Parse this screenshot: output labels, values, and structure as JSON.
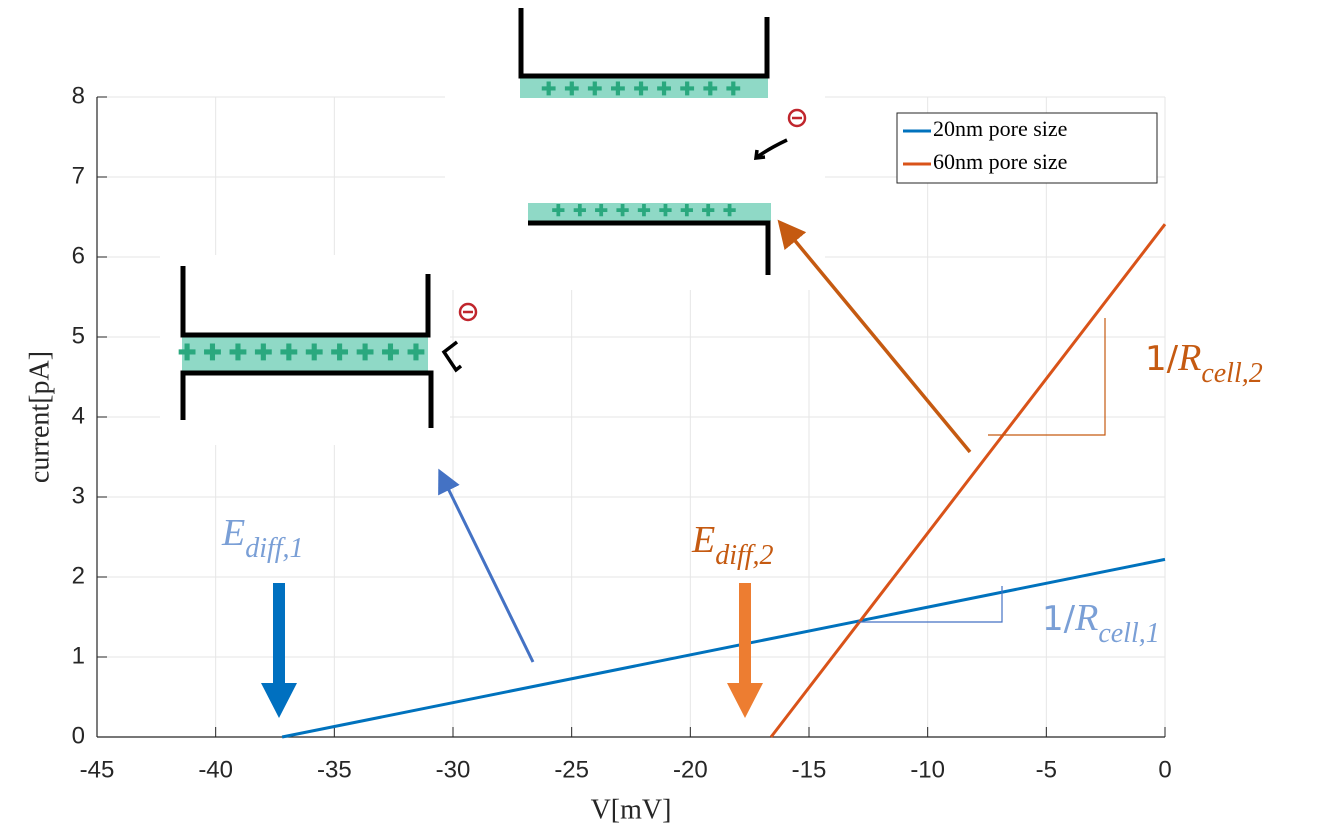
{
  "chart_data": {
    "type": "line",
    "xlabel": "V[mV]",
    "ylabel": "current[pA]",
    "xlim": [
      -45,
      0
    ],
    "ylim": [
      0,
      8
    ],
    "xticks": [
      -45,
      -40,
      -35,
      -30,
      -25,
      -20,
      -15,
      -10,
      -5,
      0
    ],
    "yticks": [
      0,
      1,
      2,
      3,
      4,
      5,
      6,
      7,
      8
    ],
    "grid": true,
    "legend": "top-right",
    "series": [
      {
        "name": "20nm pore size",
        "color": "#0072bd",
        "x": [
          -37.2,
          0
        ],
        "values": [
          0,
          2.22
        ]
      },
      {
        "name": "60nm pore size",
        "color": "#d95319",
        "x": [
          -16.6,
          0
        ],
        "values": [
          0,
          6.41
        ]
      }
    ],
    "annotations": [
      {
        "symbol": "E",
        "subscript": "diff,1",
        "color": "#7a9fd6"
      },
      {
        "symbol": "E",
        "subscript": "diff,2",
        "color": "#c55a11"
      },
      {
        "prefix": "1/",
        "symbol": "R",
        "subscript": "cell,1",
        "color": "#7a9fd6"
      },
      {
        "prefix": "1/",
        "symbol": "R",
        "subscript": "cell,2",
        "color": "#c55a11"
      }
    ]
  }
}
